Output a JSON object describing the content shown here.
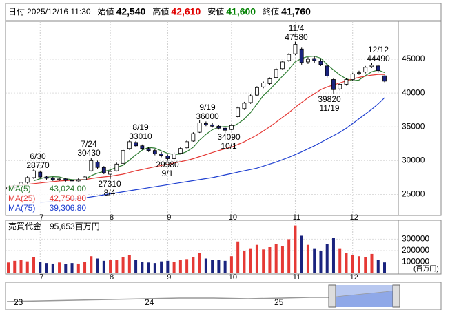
{
  "header": [
    {
      "label": "日付",
      "value": "2025/12/16 11:30",
      "color": "#000000"
    },
    {
      "label": "始値",
      "value": "42,540",
      "color": "#000000"
    },
    {
      "label": "高値",
      "value": "42,610",
      "color": "#e00000"
    },
    {
      "label": "安値",
      "value": "41,600",
      "color": "#008000"
    },
    {
      "label": "終値",
      "value": "41,760",
      "color": "#000000"
    }
  ],
  "chart_data": [
    {
      "type": "candlestick",
      "categories": [
        null,
        null,
        null,
        null,
        null,
        "7",
        null,
        null,
        null,
        null,
        null,
        null,
        null,
        null,
        null,
        null,
        "8",
        null,
        null,
        null,
        null,
        null,
        null,
        null,
        null,
        "9",
        null,
        null,
        null,
        null,
        null,
        null,
        null,
        null,
        null,
        "10",
        null,
        null,
        null,
        null,
        null,
        null,
        null,
        null,
        null,
        "11",
        null,
        null,
        null,
        null,
        null,
        null,
        null,
        null,
        "12",
        null,
        null,
        null,
        null,
        null
      ],
      "ohlc": [
        [
          25800,
          26200,
          25600,
          26000
        ],
        [
          26000,
          26500,
          25800,
          26300
        ],
        [
          26300,
          27000,
          26100,
          26800
        ],
        [
          26800,
          27700,
          26600,
          27500
        ],
        [
          27500,
          28770,
          27300,
          28500
        ],
        [
          28300,
          28500,
          27400,
          27600
        ],
        [
          27600,
          27800,
          27200,
          27400
        ],
        [
          27400,
          27600,
          27000,
          27200
        ],
        [
          27200,
          27500,
          27000,
          27300
        ],
        [
          27300,
          27400,
          26900,
          27100
        ],
        [
          27100,
          27300,
          26800,
          27000
        ],
        [
          27000,
          27400,
          26900,
          27200
        ],
        [
          27200,
          27800,
          27100,
          27600
        ],
        [
          28500,
          30430,
          28400,
          30000
        ],
        [
          29800,
          30000,
          28800,
          29000
        ],
        [
          29000,
          29200,
          28000,
          28200
        ],
        [
          28000,
          28600,
          27310,
          28400
        ],
        [
          28500,
          29700,
          28400,
          29500
        ],
        [
          29600,
          31700,
          29500,
          31500
        ],
        [
          31800,
          33010,
          31600,
          32800
        ],
        [
          32700,
          32900,
          32000,
          32200
        ],
        [
          32200,
          32400,
          31600,
          31800
        ],
        [
          31800,
          32000,
          31300,
          31500
        ],
        [
          31500,
          31700,
          30800,
          31000
        ],
        [
          31000,
          31300,
          30500,
          30800
        ],
        [
          30700,
          30900,
          29980,
          30300
        ],
        [
          30300,
          31200,
          30200,
          31000
        ],
        [
          31100,
          32000,
          31000,
          31800
        ],
        [
          31900,
          33000,
          31800,
          32800
        ],
        [
          32900,
          34200,
          32800,
          34000
        ],
        [
          34200,
          36000,
          34100,
          35600
        ],
        [
          35500,
          35800,
          35100,
          35300
        ],
        [
          35300,
          35600,
          34900,
          35100
        ],
        [
          35100,
          35300,
          34600,
          34800
        ],
        [
          34800,
          35000,
          34090,
          34500
        ],
        [
          34600,
          35400,
          34500,
          35200
        ],
        [
          36500,
          38000,
          36400,
          37800
        ],
        [
          37700,
          38700,
          37500,
          38500
        ],
        [
          38600,
          39800,
          38400,
          39600
        ],
        [
          39700,
          41000,
          39600,
          40800
        ],
        [
          40900,
          41700,
          40700,
          41500
        ],
        [
          41400,
          42300,
          41200,
          42100
        ],
        [
          42300,
          43700,
          42200,
          43500
        ],
        [
          43600,
          44800,
          43400,
          44600
        ],
        [
          44800,
          45900,
          44600,
          45700
        ],
        [
          45800,
          47580,
          45600,
          47200
        ],
        [
          46500,
          46800,
          44200,
          44500
        ],
        [
          44600,
          45300,
          44300,
          45000
        ],
        [
          45100,
          45400,
          44500,
          44800
        ],
        [
          44700,
          45000,
          44000,
          44200
        ],
        [
          44000,
          44300,
          42300,
          42500
        ],
        [
          42000,
          42200,
          39820,
          40500
        ],
        [
          40600,
          41500,
          40400,
          41300
        ],
        [
          41300,
          42200,
          41100,
          42000
        ],
        [
          42000,
          43000,
          41800,
          42800
        ],
        [
          42900,
          43300,
          42700,
          43000
        ],
        [
          43100,
          44000,
          42900,
          43800
        ],
        [
          43900,
          44490,
          43700,
          44100
        ],
        [
          44000,
          44200,
          43000,
          43300
        ],
        [
          42540,
          42610,
          41600,
          41760
        ]
      ],
      "up_color": "#ffffff",
      "down_color": "#1a237e",
      "series": [
        {
          "name": "MA(5)",
          "color": "#2e7d32",
          "last": "43,024.00",
          "values": [
            null,
            null,
            null,
            null,
            27020,
            27340,
            27560,
            27640,
            27600,
            27320,
            27200,
            27160,
            27240,
            27780,
            28160,
            28400,
            28640,
            29020,
            29320,
            30080,
            30880,
            31560,
            31960,
            31860,
            31460,
            31080,
            30920,
            30980,
            31340,
            31980,
            33040,
            33900,
            34560,
            34960,
            35060,
            34980,
            35480,
            36160,
            37120,
            38380,
            39640,
            40500,
            41500,
            42500,
            43480,
            44620,
            45100,
            45400,
            45440,
            45140,
            44200,
            43400,
            42660,
            42100,
            41820,
            41920,
            42580,
            43140,
            43400,
            43024
          ]
        },
        {
          "name": "MA(25)",
          "color": "#e53935",
          "last": "42,750.80",
          "values": [
            26200,
            26300,
            26400,
            26500,
            26600,
            26700,
            26800,
            26900,
            27000,
            27050,
            27100,
            27150,
            27200,
            27350,
            27500,
            27600,
            27700,
            27850,
            28000,
            28250,
            28500,
            28700,
            28900,
            29100,
            29300,
            29450,
            29650,
            29850,
            30050,
            30300,
            30600,
            30900,
            31200,
            31500,
            31750,
            32000,
            32400,
            32800,
            33300,
            33800,
            34400,
            35000,
            35700,
            36400,
            37100,
            37900,
            38600,
            39300,
            39900,
            40500,
            40900,
            41200,
            41500,
            41800,
            42100,
            42300,
            42500,
            42650,
            42750,
            42750
          ]
        },
        {
          "name": "MA(75)",
          "color": "#1e3fd0",
          "last": "39,306.80",
          "values": [
            null,
            null,
            null,
            null,
            null,
            23800,
            23900,
            24000,
            24100,
            24200,
            24300,
            24400,
            24500,
            24650,
            24800,
            24950,
            25100,
            25250,
            25400,
            25550,
            25700,
            25850,
            26000,
            26150,
            26300,
            26450,
            26600,
            26750,
            26900,
            27050,
            27200,
            27350,
            27500,
            27700,
            27900,
            28100,
            28300,
            28500,
            28700,
            28900,
            29200,
            29500,
            29800,
            30150,
            30500,
            30900,
            31300,
            31750,
            32200,
            32700,
            33200,
            33700,
            34200,
            34800,
            35500,
            36200,
            36900,
            37600,
            38400,
            39300
          ]
        }
      ],
      "ylim": [
        22000,
        50600
      ],
      "yticks": [
        25000,
        30000,
        35000,
        40000,
        45000
      ],
      "grid": true,
      "annotations": [
        [
          "6/30",
          "28770"
        ],
        [
          "7/24",
          "30430"
        ],
        [
          "8/19",
          "33010"
        ],
        [
          "9/19",
          "36000"
        ],
        [
          "11/4",
          "47580"
        ],
        [
          "12/12",
          "44490"
        ],
        [
          "27310",
          "8/4"
        ],
        [
          "29980",
          "9/1"
        ],
        [
          "34090",
          "10/1"
        ],
        [
          "39820",
          "11/19"
        ]
      ]
    },
    {
      "type": "bar",
      "title": "売買代金　95,653百万円",
      "unit": "(百万円)",
      "categories": [
        null,
        null,
        null,
        null,
        null,
        "7",
        null,
        null,
        null,
        null,
        null,
        null,
        null,
        null,
        null,
        null,
        "8",
        null,
        null,
        null,
        null,
        null,
        null,
        null,
        null,
        "9",
        null,
        null,
        null,
        null,
        null,
        null,
        null,
        null,
        null,
        "10",
        null,
        null,
        null,
        null,
        null,
        null,
        null,
        null,
        null,
        "11",
        null,
        null,
        null,
        null,
        null,
        null,
        null,
        null,
        "12",
        null,
        null,
        null,
        null,
        null
      ],
      "values": [
        95000,
        110000,
        120000,
        105000,
        140000,
        100000,
        90000,
        85000,
        95000,
        80000,
        90000,
        85000,
        100000,
        150000,
        130000,
        110000,
        120000,
        115000,
        140000,
        160000,
        120000,
        100000,
        95000,
        90000,
        105000,
        110000,
        100000,
        115000,
        125000,
        140000,
        180000,
        130000,
        115000,
        120000,
        110000,
        150000,
        280000,
        200000,
        220000,
        250000,
        210000,
        230000,
        260000,
        240000,
        300000,
        420000,
        330000,
        250000,
        220000,
        200000,
        260000,
        310000,
        220000,
        180000,
        160000,
        150000,
        140000,
        170000,
        120000,
        95653
      ],
      "up_color": "#e53935",
      "down_color": "#1a237e",
      "ylim": [
        0,
        460000
      ],
      "yticks": [
        100000,
        200000,
        300000
      ],
      "grid": true
    }
  ],
  "navigator": {
    "labels": [
      "23",
      "24",
      "25"
    ]
  }
}
